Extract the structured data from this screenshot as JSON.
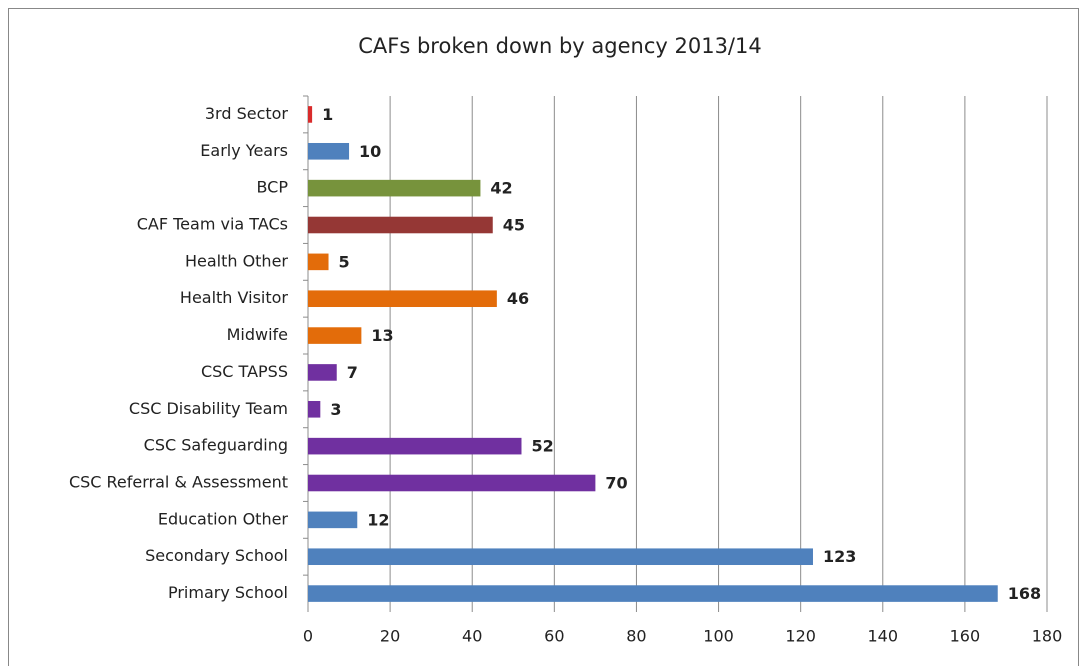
{
  "chart_data": {
    "type": "bar",
    "orientation": "horizontal",
    "title": "CAFs broken down by agency 2013/14",
    "categories": [
      "3rd Sector",
      "Early Years",
      "BCP",
      "CAF Team via TACs",
      "Health Other",
      "Health Visitor",
      "Midwife",
      "CSC TAPSS",
      "CSC Disability Team",
      "CSC Safeguarding",
      "CSC Referral & Assessment",
      "Education Other",
      "Secondary School",
      "Primary School"
    ],
    "values": [
      1,
      10,
      42,
      45,
      5,
      46,
      13,
      7,
      3,
      52,
      70,
      12,
      123,
      168
    ],
    "colors": [
      "#d92b2b",
      "#4f81bd",
      "#77933c",
      "#953735",
      "#e36c0a",
      "#e36c0a",
      "#e36c0a",
      "#7030a0",
      "#7030a0",
      "#7030a0",
      "#7030a0",
      "#4f81bd",
      "#4f81bd",
      "#4f81bd"
    ],
    "xlim": [
      0,
      180
    ],
    "xticks": [
      0,
      20,
      40,
      60,
      80,
      100,
      120,
      140,
      160,
      180
    ],
    "grid": true
  }
}
